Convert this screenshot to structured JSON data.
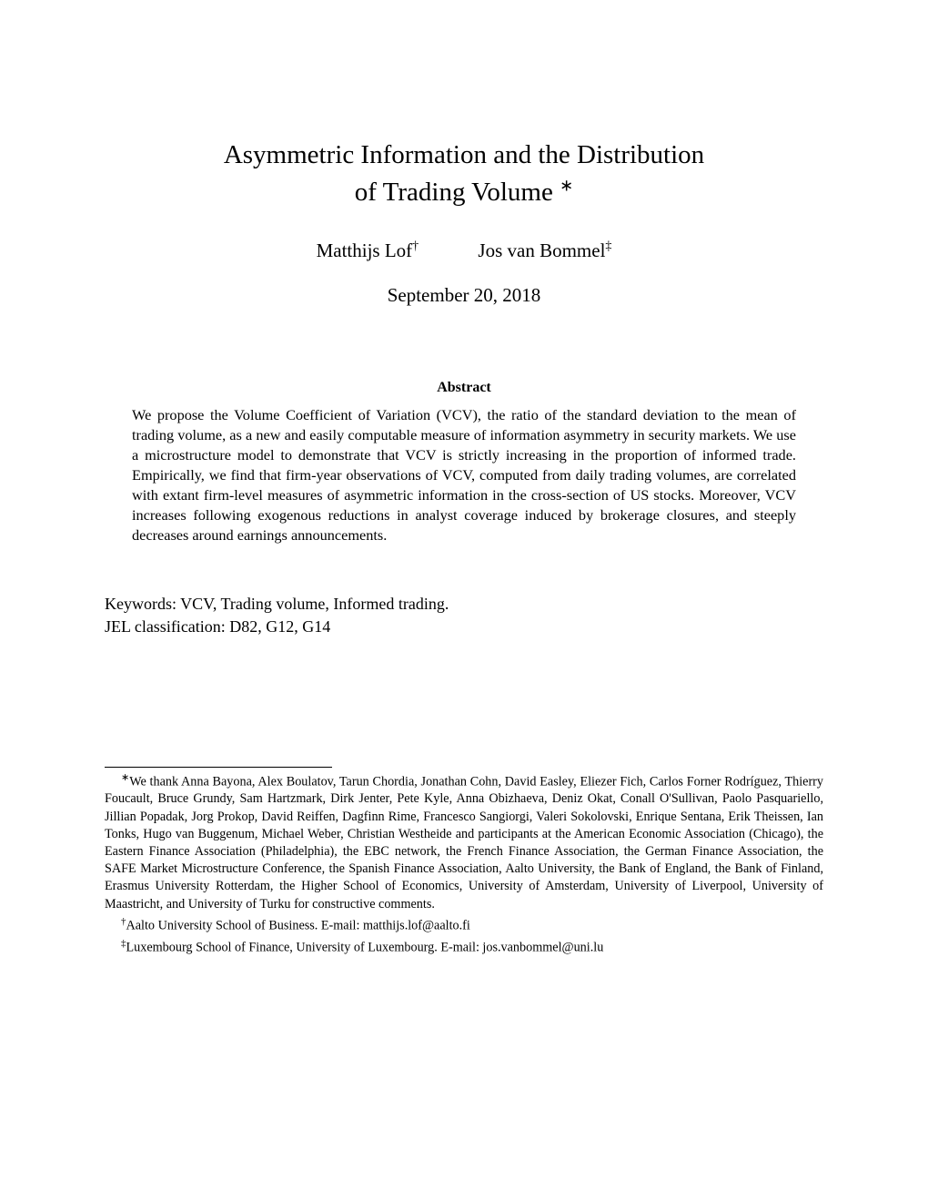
{
  "title": {
    "line1": "Asymmetric Information and the Distribution",
    "line2": "of Trading Volume ",
    "mark": "∗"
  },
  "authors": [
    {
      "name": "Matthijs Lof",
      "mark": "†"
    },
    {
      "name": "Jos van Bommel",
      "mark": "‡"
    }
  ],
  "date": "September 20, 2018",
  "abstract": {
    "heading": "Abstract",
    "text": "We propose the Volume Coefficient of Variation (VCV), the ratio of the standard deviation to the mean of trading volume, as a new and easily computable measure of information asymmetry in security markets. We use a microstructure model to demonstrate that VCV is strictly increasing in the proportion of informed trade. Empirically, we find that firm-year observations of VCV, computed from daily trading volumes, are correlated with extant firm-level measures of asymmetric information in the cross-section of US stocks. Moreover, VCV increases following exogenous reductions in analyst coverage induced by brokerage closures, and steeply decreases around earnings announcements."
  },
  "keywords": "Keywords: VCV, Trading volume, Informed trading.",
  "jel": "JEL classification: D82, G12, G14",
  "footnotes": {
    "thanks": {
      "mark": "∗",
      "text": "We thank Anna Bayona, Alex Boulatov, Tarun Chordia, Jonathan Cohn, David Easley, Eliezer Fich, Carlos Forner Rodríguez, Thierry Foucault, Bruce Grundy, Sam Hartzmark, Dirk Jenter, Pete Kyle, Anna Obizhaeva, Deniz Okat, Conall O'Sullivan, Paolo Pasquariello, Jillian Popadak, Jorg Prokop, David Reiffen, Dagfinn Rime, Francesco Sangiorgi, Valeri Sokolovski, Enrique Sentana, Erik Theissen, Ian Tonks, Hugo van Buggenum, Michael Weber, Christian Westheide and participants at the American Economic Association (Chicago), the Eastern Finance Association (Philadelphia), the EBC network, the French Finance Association, the German Finance Association, the SAFE Market Microstructure Conference, the Spanish Finance Association, Aalto University, the Bank of England, the Bank of Finland, Erasmus University Rotterdam, the Higher School of Economics, University of Amsterdam, University of Liverpool, University of Maastricht, and University of Turku for constructive comments."
    },
    "aff1": {
      "mark": "†",
      "text": "Aalto University School of Business. E-mail: matthijs.lof@aalto.fi"
    },
    "aff2": {
      "mark": "‡",
      "text": "Luxembourg School of Finance, University of Luxembourg. E-mail: jos.vanbommel@uni.lu"
    }
  }
}
